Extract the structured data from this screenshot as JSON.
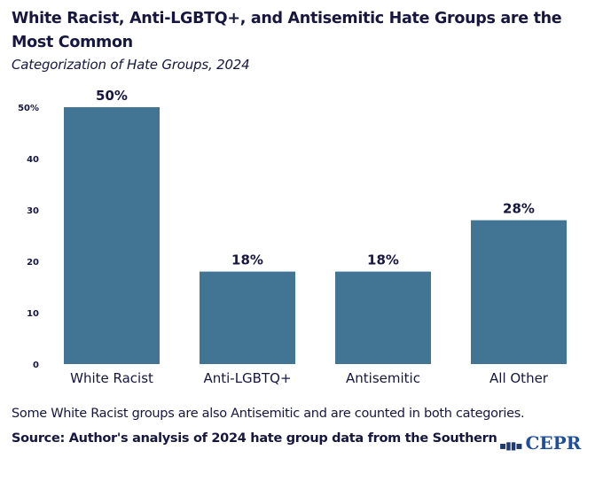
{
  "title": "White Racist, Anti-LGBTQ+, and Antisemitic Hate Groups are the Most Common",
  "subtitle": "Categorization of Hate Groups, 2024",
  "note": "Some White Racist groups are also Antisemitic and are counted in both categories.",
  "source": "Source: Author's analysis of 2024 hate group data from the Southern",
  "logo": "CEPR",
  "chart_data": {
    "type": "bar",
    "categories": [
      "White Racist",
      "Anti-LGBTQ+",
      "Antisemitic",
      "All Other"
    ],
    "values": [
      50,
      18,
      18,
      28
    ],
    "data_labels": [
      "50%",
      "18%",
      "18%",
      "28%"
    ],
    "ylim": [
      0,
      50
    ],
    "yticks": [
      "0",
      "10",
      "20",
      "30",
      "40",
      "50%"
    ],
    "grid": false,
    "bar_color": "#427594"
  }
}
